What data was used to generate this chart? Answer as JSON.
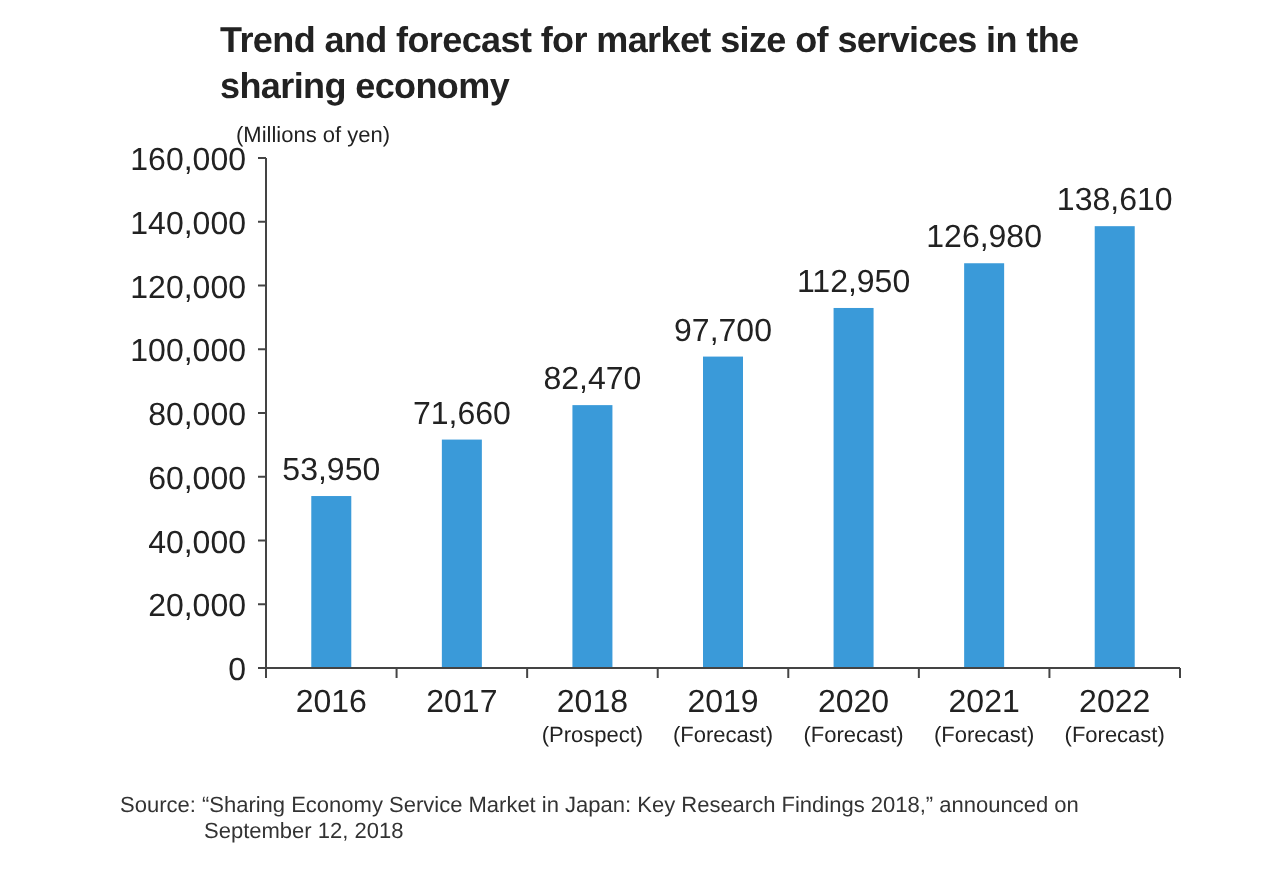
{
  "chart_data": {
    "type": "bar",
    "title": "Trend and forecast for market size of services in the sharing economy",
    "ylabel": "(Millions of yen)",
    "categories": [
      "2016",
      "2017",
      "2018\n(Prospect)",
      "2019\n(Forecast)",
      "2020\n(Forecast)",
      "2021\n(Forecast)",
      "2022\n(Forecast)"
    ],
    "values": [
      53950,
      71660,
      82470,
      97700,
      112950,
      126980,
      138610
    ],
    "value_labels": [
      "53,950",
      "71,660",
      "82,470",
      "97,700",
      "112,950",
      "126,980",
      "138,610"
    ],
    "color": "#3a9ad9",
    "ylim": [
      0,
      160000
    ],
    "yticks": [
      {
        "value": 0,
        "label": "0"
      },
      {
        "value": 20000,
        "label": "20,000"
      },
      {
        "value": 40000,
        "label": "40,000"
      },
      {
        "value": 60000,
        "label": "60,000"
      },
      {
        "value": 80000,
        "label": "80,000"
      },
      {
        "value": 100000,
        "label": "100,000"
      },
      {
        "value": 120000,
        "label": "120,000"
      },
      {
        "value": 140000,
        "label": "140,000"
      },
      {
        "value": 160000,
        "label": "160,000"
      }
    ],
    "grid": false,
    "annotations": [
      "Source: “Sharing Economy Service Market in Japan: Key Research Findings 2018,” announced on September 12, 2018"
    ]
  }
}
